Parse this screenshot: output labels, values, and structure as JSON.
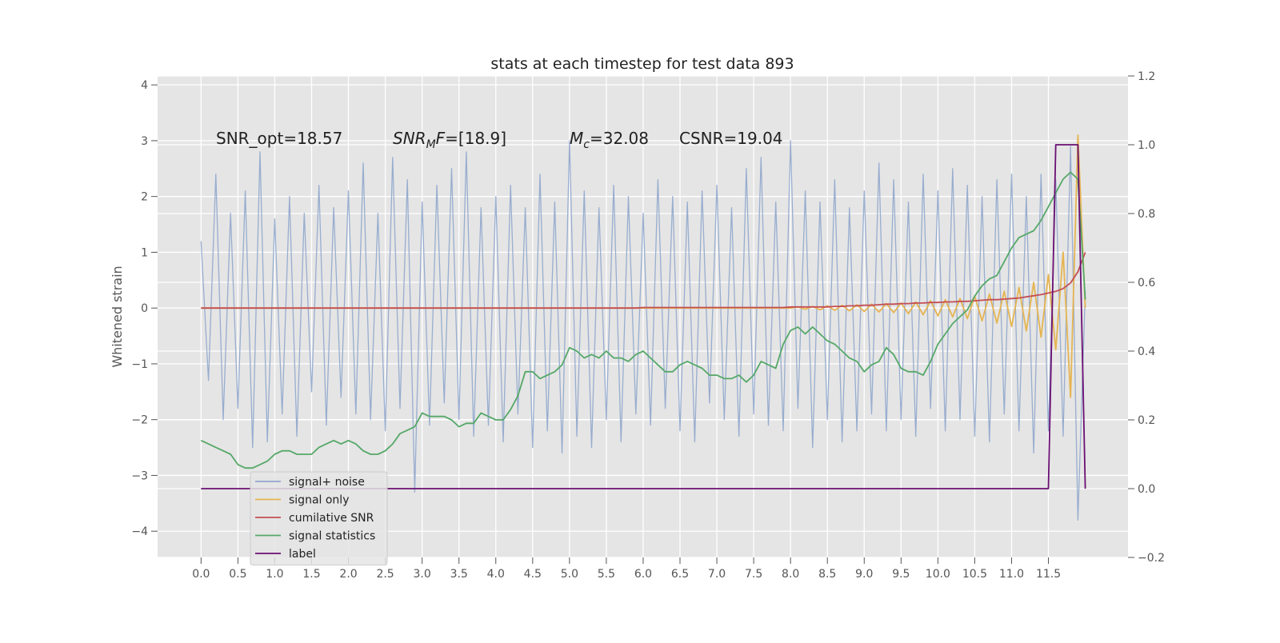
{
  "chart_data": {
    "type": "line",
    "title": "stats at each timestep for test data 893",
    "ylabel": "Whitened strain",
    "annotations": [
      {
        "parts": [
          {
            "text": "SNR_opt=18.57"
          }
        ]
      },
      {
        "parts": [
          {
            "text": "SNR",
            "style": "italic"
          },
          {
            "text": "M",
            "style": "sub"
          },
          {
            "text": "F",
            "style": "italic"
          },
          {
            "text": "=[18.9]"
          }
        ]
      },
      {
        "parts": [
          {
            "text": "M",
            "style": "italic"
          },
          {
            "text": "c",
            "style": "sub"
          },
          {
            "text": "=32.08"
          }
        ]
      },
      {
        "parts": [
          {
            "text": "CSNR=19.04"
          }
        ]
      }
    ],
    "xlim": [
      -0.59,
      12.58
    ],
    "ylim": [
      -4.47,
      4.16
    ],
    "y2lim": [
      -0.2,
      1.2
    ],
    "xticks": [
      {
        "value": 0,
        "label": "0.0"
      },
      0.5,
      {
        "value": 1,
        "label": "1.0"
      },
      1.5,
      {
        "value": 2,
        "label": "2.0"
      },
      2.5,
      {
        "value": 3,
        "label": "3.0"
      },
      3.5,
      {
        "value": 4,
        "label": "4.0"
      },
      4.5,
      {
        "value": 5,
        "label": "5.0"
      },
      5.5,
      {
        "value": 6,
        "label": "6.0"
      },
      6.5,
      {
        "value": 7,
        "label": "7.0"
      },
      7.5,
      {
        "value": 8,
        "label": "8.0"
      },
      8.5,
      {
        "value": 9,
        "label": "9.0"
      },
      9.5,
      {
        "value": 10,
        "label": "10.0"
      },
      10.5,
      {
        "value": 11,
        "label": "11.0"
      },
      11.5
    ],
    "yticks": [
      {
        "value": -4,
        "label": "−4"
      },
      {
        "value": -3,
        "label": "−3"
      },
      {
        "value": -2,
        "label": "−2"
      },
      {
        "value": -1,
        "label": "−1"
      },
      0,
      1,
      2,
      3,
      4
    ],
    "y2ticks": [
      {
        "value": -0.2,
        "label": "−0.2"
      },
      {
        "value": 0,
        "label": "0.0"
      },
      0.2,
      0.4,
      0.6,
      0.8,
      {
        "value": 1,
        "label": "1.0"
      },
      1.2
    ],
    "grid": true,
    "legend": "lower left",
    "x": [
      0,
      0.1,
      0.2,
      0.3,
      0.4,
      0.5,
      0.6,
      0.7,
      0.8,
      0.9,
      1,
      1.1,
      1.2,
      1.3,
      1.4,
      1.5,
      1.6,
      1.7,
      1.8,
      1.9,
      2,
      2.1,
      2.2,
      2.3,
      2.4,
      2.5,
      2.6,
      2.7,
      2.8,
      2.9,
      3,
      3.1,
      3.2,
      3.3,
      3.4,
      3.5,
      3.6,
      3.7,
      3.8,
      3.9,
      4,
      4.1,
      4.2,
      4.3,
      4.4,
      4.5,
      4.6,
      4.7,
      4.8,
      4.9,
      5,
      5.1,
      5.2,
      5.3,
      5.4,
      5.5,
      5.6,
      5.7,
      5.8,
      5.9,
      6,
      6.1,
      6.2,
      6.3,
      6.4,
      6.5,
      6.6,
      6.7,
      6.8,
      6.9,
      7,
      7.1,
      7.2,
      7.3,
      7.4,
      7.5,
      7.6,
      7.7,
      7.8,
      7.9,
      8,
      8.1,
      8.2,
      8.3,
      8.4,
      8.5,
      8.6,
      8.7,
      8.8,
      8.9,
      9,
      9.1,
      9.2,
      9.3,
      9.4,
      9.5,
      9.6,
      9.7,
      9.8,
      9.9,
      10,
      10.1,
      10.2,
      10.3,
      10.4,
      10.5,
      10.6,
      10.7,
      10.8,
      10.9,
      11,
      11.1,
      11.2,
      11.3,
      11.4,
      11.5,
      11.6,
      11.7,
      11.8,
      11.9,
      12
    ],
    "series": [
      {
        "name": "signal+ noise",
        "color": "#8fa6cc",
        "values": [
          1.2,
          -1.3,
          2.4,
          -2.0,
          1.7,
          -1.8,
          2.1,
          -2.5,
          2.8,
          -2.4,
          1.6,
          -1.9,
          2.0,
          -2.3,
          1.7,
          -1.5,
          2.2,
          -2.1,
          1.8,
          -1.6,
          2.1,
          -1.9,
          2.6,
          -2.0,
          1.7,
          -2.2,
          2.7,
          -1.8,
          2.3,
          -3.3,
          1.9,
          -2.1,
          2.2,
          -1.7,
          2.5,
          -2.0,
          2.8,
          -2.3,
          1.8,
          -2.1,
          2.0,
          -2.4,
          2.2,
          -1.9,
          1.8,
          -2.5,
          2.4,
          -2.2,
          1.9,
          -2.6,
          3.0,
          -2.3,
          2.1,
          -2.5,
          1.8,
          -2.0,
          2.2,
          -2.4,
          2.0,
          -1.9,
          1.7,
          -2.1,
          2.3,
          -1.8,
          2.0,
          -2.2,
          1.9,
          -2.4,
          2.1,
          -1.7,
          2.2,
          -2.0,
          1.8,
          -2.3,
          2.5,
          -1.9,
          2.7,
          -2.1,
          1.9,
          -2.2,
          3.0,
          -1.8,
          2.1,
          -2.5,
          1.9,
          -2.0,
          2.3,
          -2.4,
          1.8,
          -2.2,
          2.1,
          -1.9,
          2.6,
          -2.2,
          2.3,
          -2.0,
          1.9,
          -2.3,
          2.4,
          -1.8,
          2.1,
          -2.2,
          2.5,
          -2.0,
          2.2,
          -2.3,
          2.0,
          -2.4,
          2.3,
          -1.9,
          2.4,
          -2.2,
          2.0,
          -2.6,
          2.4,
          -2.2,
          2.3,
          -2.3,
          2.9,
          -3.8,
          0.3
        ]
      },
      {
        "name": "signal only",
        "color": "#e5b452",
        "values": [
          0,
          0,
          0,
          0,
          0,
          0,
          0,
          0,
          0,
          0,
          0,
          0,
          0,
          0,
          0,
          0,
          0,
          0,
          0,
          0,
          0,
          0,
          0,
          0,
          0,
          0,
          0,
          0,
          0,
          0,
          0,
          0,
          0,
          0,
          0,
          0,
          0,
          0,
          0,
          0,
          0,
          0,
          0,
          0,
          0,
          0,
          0,
          0,
          0,
          0,
          0,
          0,
          0,
          0,
          0,
          0,
          0,
          0,
          0,
          0,
          0,
          0,
          0,
          0,
          0,
          0,
          0,
          0,
          0,
          0,
          0,
          0,
          0,
          0,
          0,
          0,
          0,
          0,
          0,
          0,
          0,
          0.02,
          -0.02,
          0.03,
          -0.03,
          0.04,
          -0.04,
          0.05,
          -0.05,
          0.06,
          -0.06,
          0.07,
          -0.07,
          0.08,
          -0.08,
          0.09,
          -0.1,
          0.11,
          -0.12,
          0.13,
          -0.14,
          0.15,
          -0.16,
          0.17,
          -0.19,
          0.21,
          -0.23,
          0.25,
          -0.27,
          0.3,
          -0.33,
          0.37,
          -0.41,
          0.46,
          -0.52,
          0.6,
          -0.75,
          1.0,
          -1.6,
          3.1,
          0
        ]
      },
      {
        "name": "cumilative SNR",
        "color": "#c44e52",
        "values": [
          0,
          0,
          0,
          0,
          0,
          0,
          0,
          0,
          0,
          0,
          0,
          0,
          0,
          0,
          0,
          0,
          0,
          0,
          0,
          0,
          0,
          0,
          0,
          0,
          0,
          0,
          0,
          0,
          0,
          0,
          0,
          0,
          0,
          0,
          0,
          0,
          0,
          0,
          0,
          0,
          0,
          0,
          0,
          0,
          0,
          0,
          0,
          0,
          0,
          0,
          0,
          0,
          0,
          0,
          0,
          0,
          0,
          0,
          0,
          0,
          0.01,
          0.01,
          0.01,
          0.01,
          0.01,
          0.01,
          0.01,
          0.01,
          0.01,
          0.01,
          0.01,
          0.01,
          0.01,
          0.01,
          0.01,
          0.01,
          0.01,
          0.01,
          0.01,
          0.01,
          0.02,
          0.02,
          0.02,
          0.02,
          0.02,
          0.02,
          0.03,
          0.03,
          0.04,
          0.04,
          0.05,
          0.05,
          0.06,
          0.07,
          0.07,
          0.08,
          0.08,
          0.09,
          0.09,
          0.1,
          0.1,
          0.11,
          0.11,
          0.12,
          0.12,
          0.13,
          0.14,
          0.15,
          0.15,
          0.16,
          0.17,
          0.18,
          0.2,
          0.22,
          0.24,
          0.27,
          0.3,
          0.35,
          0.45,
          0.65,
          1.0
        ]
      },
      {
        "name": "signal statistics",
        "color": "#55a868",
        "axis": "y2",
        "values": [
          0.14,
          0.13,
          0.12,
          0.11,
          0.1,
          0.07,
          0.06,
          0.06,
          0.07,
          0.08,
          0.1,
          0.11,
          0.11,
          0.1,
          0.1,
          0.1,
          0.12,
          0.13,
          0.14,
          0.13,
          0.14,
          0.13,
          0.11,
          0.1,
          0.1,
          0.11,
          0.13,
          0.16,
          0.17,
          0.18,
          0.22,
          0.21,
          0.21,
          0.21,
          0.2,
          0.18,
          0.19,
          0.19,
          0.22,
          0.21,
          0.2,
          0.2,
          0.23,
          0.27,
          0.34,
          0.34,
          0.32,
          0.33,
          0.34,
          0.36,
          0.41,
          0.4,
          0.38,
          0.39,
          0.38,
          0.4,
          0.38,
          0.38,
          0.37,
          0.39,
          0.4,
          0.38,
          0.36,
          0.34,
          0.34,
          0.36,
          0.37,
          0.36,
          0.35,
          0.33,
          0.33,
          0.32,
          0.32,
          0.33,
          0.31,
          0.33,
          0.37,
          0.36,
          0.35,
          0.42,
          0.46,
          0.47,
          0.45,
          0.47,
          0.45,
          0.43,
          0.42,
          0.4,
          0.38,
          0.37,
          0.34,
          0.36,
          0.37,
          0.41,
          0.39,
          0.35,
          0.34,
          0.34,
          0.33,
          0.37,
          0.42,
          0.45,
          0.48,
          0.5,
          0.52,
          0.56,
          0.59,
          0.61,
          0.62,
          0.66,
          0.7,
          0.73,
          0.74,
          0.75,
          0.78,
          0.82,
          0.86,
          0.9,
          0.92,
          0.9,
          0.55
        ]
      },
      {
        "name": "label",
        "color": "#6a0f73",
        "axis": "y2",
        "values": [
          0,
          0,
          0,
          0,
          0,
          0,
          0,
          0,
          0,
          0,
          0,
          0,
          0,
          0,
          0,
          0,
          0,
          0,
          0,
          0,
          0,
          0,
          0,
          0,
          0,
          0,
          0,
          0,
          0,
          0,
          0,
          0,
          0,
          0,
          0,
          0,
          0,
          0,
          0,
          0,
          0,
          0,
          0,
          0,
          0,
          0,
          0,
          0,
          0,
          0,
          0,
          0,
          0,
          0,
          0,
          0,
          0,
          0,
          0,
          0,
          0,
          0,
          0,
          0,
          0,
          0,
          0,
          0,
          0,
          0,
          0,
          0,
          0,
          0,
          0,
          0,
          0,
          0,
          0,
          0,
          0,
          0,
          0,
          0,
          0,
          0,
          0,
          0,
          0,
          0,
          0,
          0,
          0,
          0,
          0,
          0,
          0,
          0,
          0,
          0,
          0,
          0,
          0,
          0,
          0,
          0,
          0,
          0,
          0,
          0,
          0,
          0,
          0,
          0,
          0,
          0,
          1,
          1,
          1,
          1,
          0
        ]
      }
    ]
  }
}
